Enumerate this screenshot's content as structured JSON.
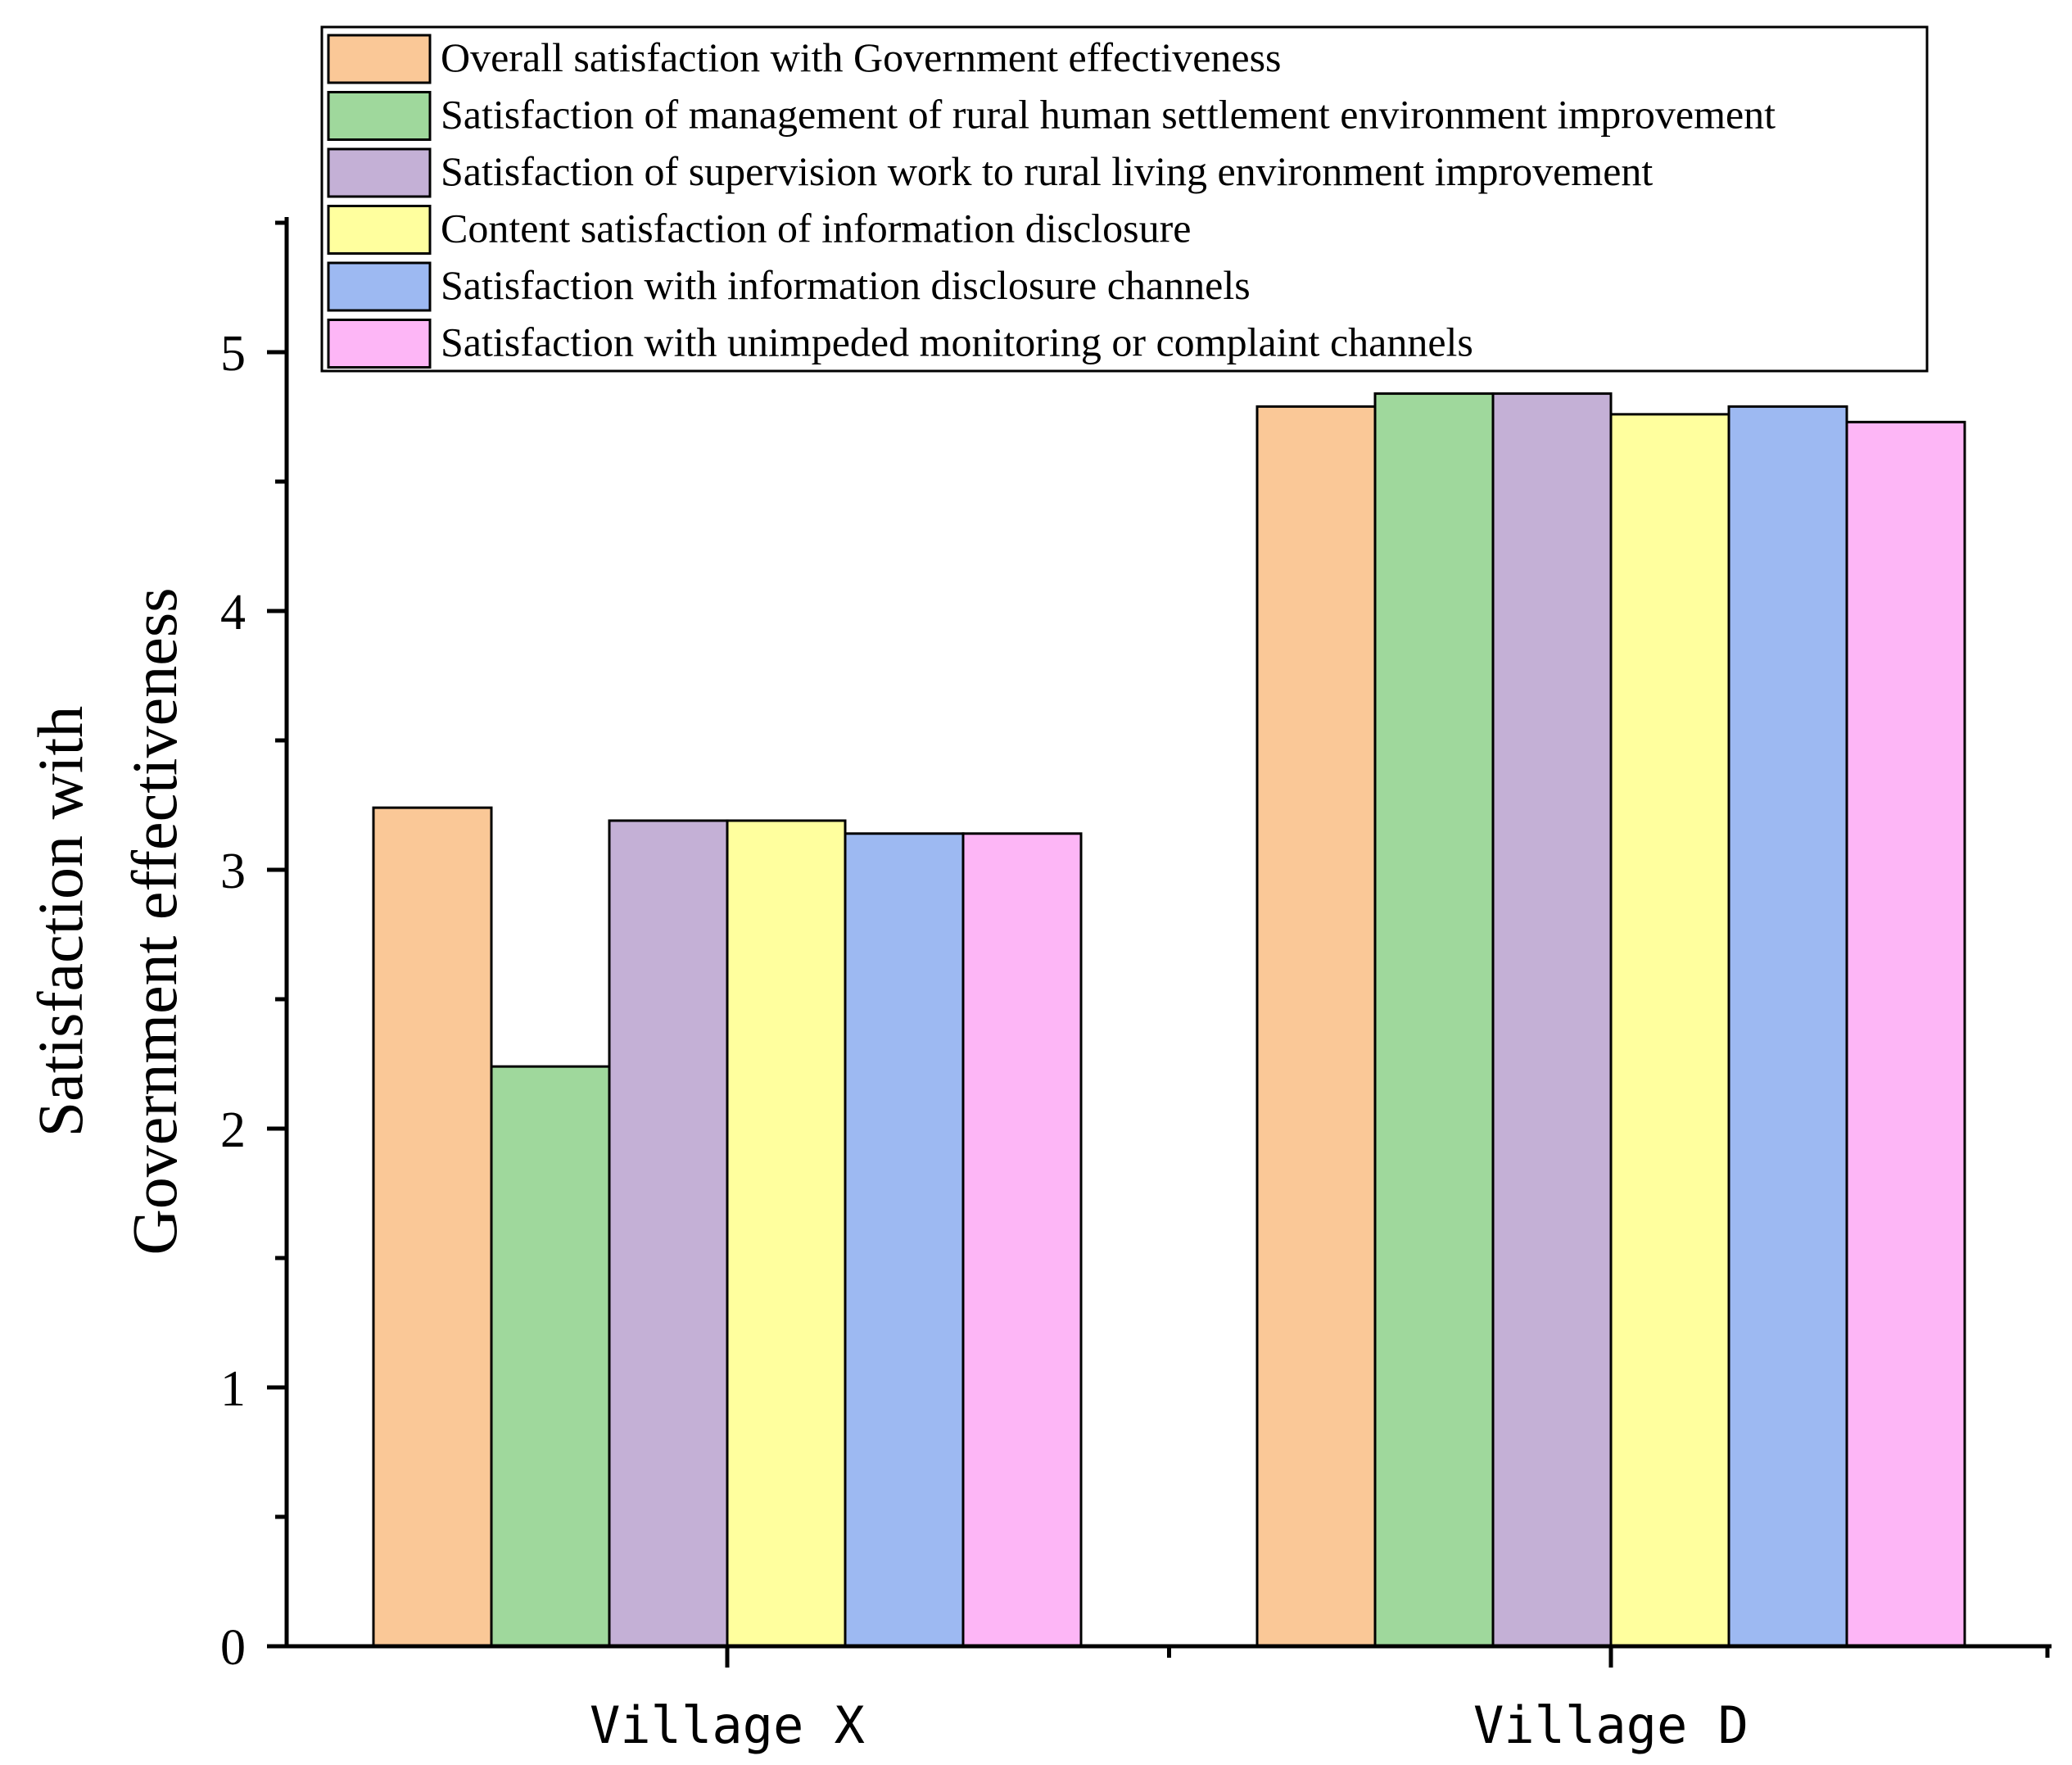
{
  "chart_data": {
    "type": "bar",
    "title": "",
    "xlabel": "",
    "ylabel": [
      "Satisfaction with",
      "Government effectiveness"
    ],
    "ylim": [
      0,
      5.5
    ],
    "yticks": [
      0,
      1,
      2,
      3,
      4,
      5
    ],
    "categories": [
      "Village X",
      "Village D"
    ],
    "legend_position": "top-right",
    "series": [
      {
        "name": "Overall satisfaction with Government effectiveness",
        "color": "#FAC897",
        "values": [
          3.24,
          4.79
        ]
      },
      {
        "name": "Satisfaction of management of rural human settlement environment improvement",
        "color": "#9FD89C",
        "values": [
          2.24,
          4.84
        ]
      },
      {
        "name": "Satisfaction of supervision work to rural living environment improvement",
        "color": "#C4B0D6",
        "values": [
          3.19,
          4.84
        ]
      },
      {
        "name": "Content satisfaction of information disclosure",
        "color": "#FFFF9E",
        "values": [
          3.19,
          4.76
        ]
      },
      {
        "name": "Satisfaction with information disclosure channels",
        "color": "#9DB9F2",
        "values": [
          3.14,
          4.79
        ]
      },
      {
        "name": "Satisfaction with unimpeded monitoring or complaint channels",
        "color": "#FDB6F6",
        "values": [
          3.14,
          4.73
        ]
      }
    ]
  }
}
